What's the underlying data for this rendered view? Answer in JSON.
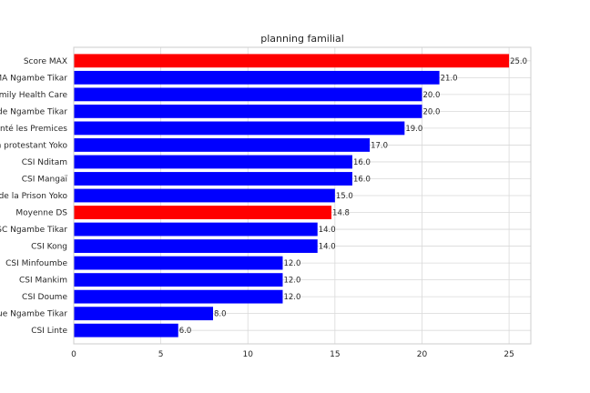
{
  "chart_data": {
    "type": "bar",
    "orientation": "horizontal",
    "title": "planning familial",
    "xlabel": "",
    "ylabel": "",
    "xlim": [
      0,
      26.25
    ],
    "xticks": [
      0,
      5,
      10,
      15,
      20,
      25
    ],
    "grid": true,
    "categories": [
      "Score MAX",
      "CMA Ngambe Tikar",
      "CS Family Health Care",
      "HD de Ngambe Tikar",
      "CS Santé les Premices",
      "CS de la Mission protestant Yoko",
      "CSI Nditam",
      "CSI Mangaï",
      "CS de la Prison Yoko",
      "Moyenne DS",
      "CSC Ngambe Tikar",
      "CSI Kong",
      "CSI Minfoumbe",
      "CSI Mankim",
      "CSI Doume",
      "CS Mission Catholique Ngambe Tikar",
      "CSI Linte"
    ],
    "values": [
      25.0,
      21.0,
      20.0,
      20.0,
      19.0,
      17.0,
      16.0,
      16.0,
      15.0,
      14.8,
      14.0,
      14.0,
      12.0,
      12.0,
      12.0,
      8.0,
      6.0
    ],
    "value_labels": [
      "25.0",
      "21.0",
      "20.0",
      "20.0",
      "19.0",
      "17.0",
      "16.0",
      "16.0",
      "15.0",
      "14.8",
      "14.0",
      "14.0",
      "12.0",
      "12.0",
      "12.0",
      "8.0",
      "6.0"
    ],
    "bar_colors": [
      "#ff0000",
      "#0000ff",
      "#0000ff",
      "#0000ff",
      "#0000ff",
      "#0000ff",
      "#0000ff",
      "#0000ff",
      "#0000ff",
      "#ff0000",
      "#0000ff",
      "#0000ff",
      "#0000ff",
      "#0000ff",
      "#0000ff",
      "#0000ff",
      "#0000ff"
    ],
    "colors": {
      "highlight": "#ff0000",
      "default": "#0000ff",
      "grid": "#d9d9d9",
      "axes_edge": "#cccccc",
      "text": "#262626"
    }
  }
}
